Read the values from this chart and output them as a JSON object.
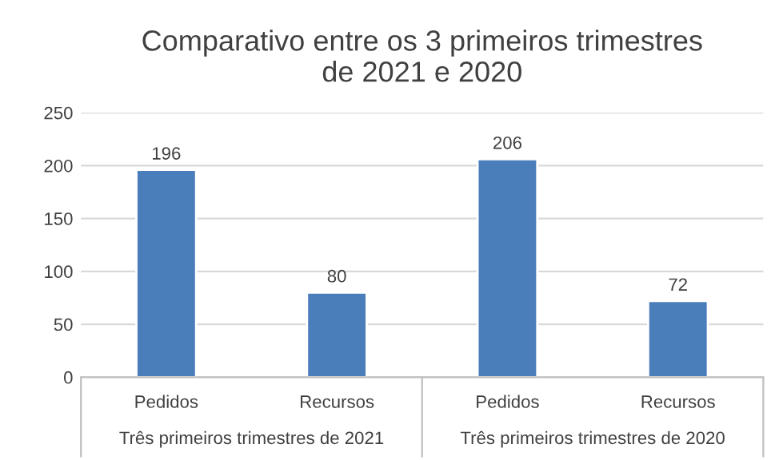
{
  "chart_data": {
    "type": "bar",
    "title": "Comparativo entre os 3 primeiros trimestres\nde 2021 e 2020",
    "categories": [
      "Pedidos",
      "Recursos",
      "Pedidos",
      "Recursos"
    ],
    "values": [
      196,
      80,
      206,
      72
    ],
    "color": "#4a7ebb",
    "data_labels": true,
    "ylim": [
      0,
      250
    ],
    "yticks": [
      0,
      50,
      100,
      150,
      200,
      250
    ],
    "grid": "y",
    "annotations": [
      "Três primeiros trimestres de 2021",
      "Três primeiros trimestres de 2020"
    ]
  }
}
